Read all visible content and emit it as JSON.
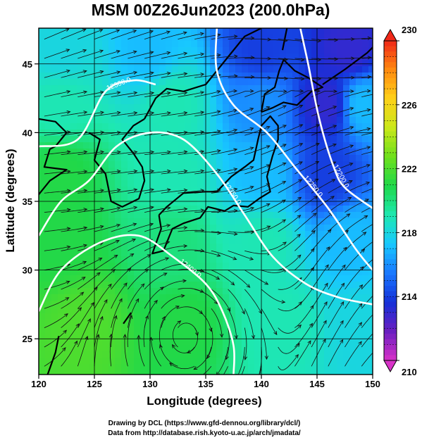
{
  "chart_data": {
    "type": "heatmap",
    "title": "MSM 00Z26Jun2023 (200.0hPa)",
    "xlabel": "Longitude (degrees)",
    "ylabel": "Latitude  (degrees)",
    "xlim": [
      120,
      150
    ],
    "ylim": [
      22.4,
      47.6
    ],
    "xticks": [
      "120",
      "125",
      "130",
      "135",
      "140",
      "145",
      "150"
    ],
    "yticks": [
      "25",
      "30",
      "35",
      "40",
      "45"
    ],
    "x_tick_values": [
      120,
      125,
      130,
      135,
      140,
      145,
      150
    ],
    "y_tick_values": [
      25,
      30,
      35,
      40,
      45
    ],
    "grid": true,
    "colorbar": {
      "min": 210,
      "max": 230,
      "ticks": [
        "230",
        "226",
        "222",
        "218",
        "214",
        "210"
      ],
      "tick_values": [
        230,
        226,
        222,
        218,
        214,
        210
      ],
      "colors": [
        "#d832c8",
        "#6a1fc0",
        "#1530d8",
        "#1a78ff",
        "#18c8ff",
        "#1ee8b0",
        "#1fd84a",
        "#6ee01c",
        "#c9e81a",
        "#ffd21a",
        "#ff8a10",
        "#f02818"
      ]
    },
    "field_samples": [
      {
        "lon": 122,
        "lat": 46,
        "value": 218
      },
      {
        "lon": 130,
        "lat": 46,
        "value": 217
      },
      {
        "lon": 140,
        "lat": 46,
        "value": 214
      },
      {
        "lon": 148,
        "lat": 46,
        "value": 213
      },
      {
        "lon": 122,
        "lat": 42,
        "value": 219
      },
      {
        "lon": 132,
        "lat": 42,
        "value": 219
      },
      {
        "lon": 140,
        "lat": 42,
        "value": 216
      },
      {
        "lon": 146,
        "lat": 42,
        "value": 213
      },
      {
        "lon": 149,
        "lat": 42,
        "value": 217
      },
      {
        "lon": 122,
        "lat": 37,
        "value": 221
      },
      {
        "lon": 132,
        "lat": 37,
        "value": 219
      },
      {
        "lon": 140,
        "lat": 37,
        "value": 217
      },
      {
        "lon": 146,
        "lat": 37,
        "value": 214
      },
      {
        "lon": 122,
        "lat": 32,
        "value": 221
      },
      {
        "lon": 132,
        "lat": 32,
        "value": 220
      },
      {
        "lon": 140,
        "lat": 32,
        "value": 219
      },
      {
        "lon": 148,
        "lat": 32,
        "value": 217
      },
      {
        "lon": 124,
        "lat": 26,
        "value": 222
      },
      {
        "lon": 133,
        "lat": 26,
        "value": 221
      },
      {
        "lon": 142,
        "lat": 26,
        "value": 219
      },
      {
        "lon": 149,
        "lat": 26,
        "value": 218
      }
    ],
    "contours": [
      {
        "label": "12200.0",
        "points": [
          [
            143.5,
            47.6
          ],
          [
            144.2,
            45
          ],
          [
            145.2,
            41
          ],
          [
            146.5,
            37.5
          ],
          [
            147.5,
            36
          ],
          [
            150,
            34.5
          ]
        ]
      },
      {
        "label": "12250.0",
        "points": [
          [
            136,
            47.6
          ],
          [
            136,
            44.5
          ],
          [
            137.5,
            42
          ],
          [
            140.5,
            40
          ],
          [
            143,
            37.5
          ],
          [
            146,
            34.5
          ],
          [
            148.5,
            31.5
          ],
          [
            150,
            30
          ]
        ]
      },
      {
        "label": "12300.0",
        "points": [
          [
            120,
            39
          ],
          [
            123.5,
            39.5
          ],
          [
            126,
            43
          ],
          [
            128.5,
            43.8
          ],
          [
            130.5,
            43.5
          ]
        ]
      },
      {
        "label": "12350.0",
        "points": [
          [
            120,
            32.5
          ],
          [
            122,
            35
          ],
          [
            124.5,
            36.5
          ],
          [
            127,
            39
          ],
          [
            130,
            40
          ],
          [
            133,
            39.5
          ],
          [
            136,
            37
          ],
          [
            138.5,
            34
          ],
          [
            141,
            31
          ],
          [
            144,
            29
          ],
          [
            147,
            28
          ],
          [
            150,
            27.5
          ]
        ]
      },
      {
        "label": "12400.0",
        "points": [
          [
            120,
            27
          ],
          [
            122,
            30
          ],
          [
            125.5,
            32
          ],
          [
            129,
            32.5
          ],
          [
            132,
            31
          ],
          [
            135,
            29
          ],
          [
            136.5,
            27
          ],
          [
            137.5,
            24.5
          ],
          [
            137.5,
            22.4
          ]
        ]
      }
    ],
    "contour_values": [
      12200,
      12250,
      12300,
      12350,
      12400
    ],
    "streamlines": true,
    "anticyclone_center": {
      "lon": 133,
      "lat": 25.5
    }
  },
  "credits": {
    "line1": "Drawing by DCL (https://www.gfd-dennou.org/library/dcl/)",
    "line2": "Data from http://database.rish.kyoto-u.ac.jp/arch/jmadata/"
  }
}
